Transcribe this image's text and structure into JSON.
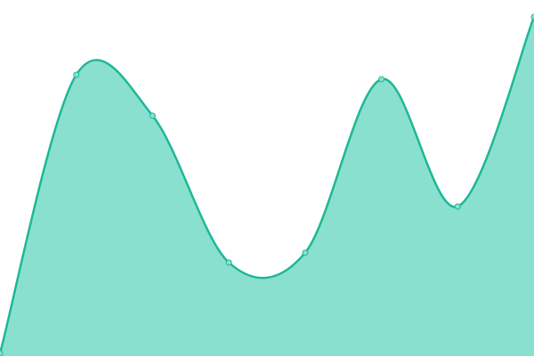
{
  "chart_data": {
    "type": "area",
    "values": [
      0,
      313,
      267,
      102,
      113,
      308,
      165,
      378
    ],
    "color": "#1db894",
    "fill": "#8ae0cf",
    "smooth": true,
    "markers": true
  }
}
